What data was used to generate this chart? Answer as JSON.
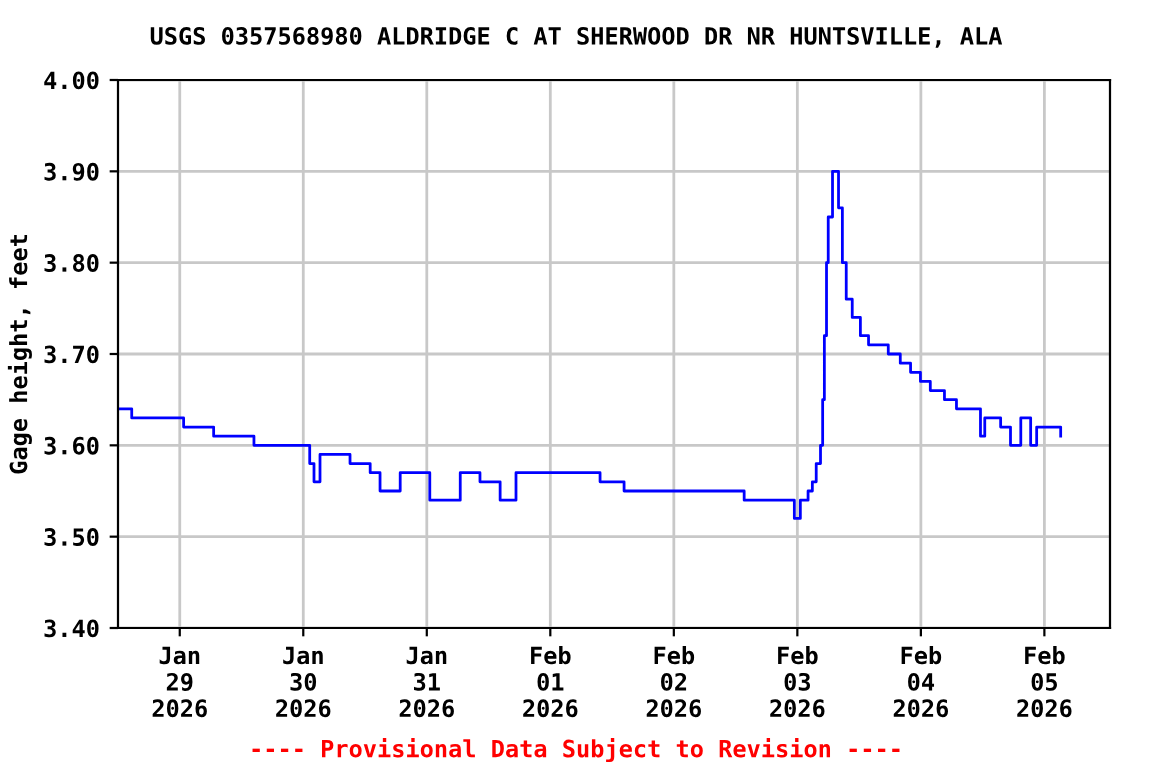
{
  "chart_data": {
    "type": "step",
    "title": "USGS 0357568980 ALDRIDGE C AT SHERWOOD DR NR HUNTSVILLE, ALA",
    "ylabel": "Gage height, feet",
    "annotations": [
      "---- Provisional Data Subject to Revision ----"
    ],
    "x": [
      "2026-01-28T12:20",
      "2026-01-28T14:40",
      "2026-01-29T00:00",
      "2026-01-29T00:45",
      "2026-01-29T06:15",
      "2026-01-29T06:35",
      "2026-01-29T14:00",
      "2026-01-29T14:25",
      "2026-01-30T00:30",
      "2026-01-30T01:15",
      "2026-01-30T02:05",
      "2026-01-30T03:15",
      "2026-01-30T09:05",
      "2026-01-30T13:00",
      "2026-01-30T14:55",
      "2026-01-30T18:50",
      "2026-01-31T00:35",
      "2026-01-31T06:30",
      "2026-01-31T10:20",
      "2026-01-31T14:15",
      "2026-01-31T17:20",
      "2026-02-01T09:40",
      "2026-02-01T13:35",
      "2026-02-01T14:20",
      "2026-02-02T12:55",
      "2026-02-02T13:40",
      "2026-02-02T22:35",
      "2026-02-02T23:25",
      "2026-02-03T00:35",
      "2026-02-03T02:05",
      "2026-02-03T02:55",
      "2026-02-03T03:40",
      "2026-02-03T04:30",
      "2026-02-03T04:55",
      "2026-02-03T05:15",
      "2026-02-03T05:40",
      "2026-02-03T06:00",
      "2026-02-03T06:50",
      "2026-02-03T07:35",
      "2026-02-03T08:00",
      "2026-02-03T08:45",
      "2026-02-03T09:30",
      "2026-02-03T10:40",
      "2026-02-03T12:15",
      "2026-02-03T13:50",
      "2026-02-03T16:10",
      "2026-02-03T17:40",
      "2026-02-03T20:00",
      "2026-02-03T22:00",
      "2026-02-03T23:55",
      "2026-02-04T01:50",
      "2026-02-04T04:35",
      "2026-02-04T06:55",
      "2026-02-04T11:35",
      "2026-02-04T12:25",
      "2026-02-04T15:30",
      "2026-02-04T17:25",
      "2026-02-04T19:25",
      "2026-02-04T21:20",
      "2026-02-04T22:30",
      "2026-02-05T02:00",
      "2026-02-05T03:10"
    ],
    "series": [
      {
        "color": "#0000ff",
        "values": [
          3.64,
          3.63,
          3.63,
          3.62,
          3.62,
          3.61,
          3.61,
          3.6,
          3.6,
          3.58,
          3.56,
          3.59,
          3.58,
          3.57,
          3.55,
          3.57,
          3.54,
          3.57,
          3.56,
          3.54,
          3.57,
          3.56,
          3.56,
          3.55,
          3.55,
          3.54,
          3.54,
          3.52,
          3.54,
          3.55,
          3.56,
          3.58,
          3.6,
          3.65,
          3.72,
          3.8,
          3.85,
          3.9,
          3.9,
          3.86,
          3.8,
          3.76,
          3.74,
          3.72,
          3.71,
          3.71,
          3.7,
          3.69,
          3.68,
          3.67,
          3.66,
          3.65,
          3.64,
          3.61,
          3.63,
          3.62,
          3.6,
          3.63,
          3.6,
          3.62,
          3.62,
          3.61
        ]
      }
    ],
    "xlim": [
      "2026-01-28T12:00",
      "2026-02-05T12:45"
    ],
    "xticks": [
      {
        "value": "2026-01-29",
        "label": "Jan\n29\n2026"
      },
      {
        "value": "2026-01-30",
        "label": "Jan\n30\n2026"
      },
      {
        "value": "2026-01-31",
        "label": "Jan\n31\n2026"
      },
      {
        "value": "2026-02-01",
        "label": "Feb\n01\n2026"
      },
      {
        "value": "2026-02-02",
        "label": "Feb\n02\n2026"
      },
      {
        "value": "2026-02-03",
        "label": "Feb\n03\n2026"
      },
      {
        "value": "2026-02-04",
        "label": "Feb\n04\n2026"
      },
      {
        "value": "2026-02-05",
        "label": "Feb\n05\n2026"
      }
    ],
    "ylim": [
      3.4,
      4.0
    ],
    "yticks": [
      {
        "value": 3.4,
        "label": "3.40"
      },
      {
        "value": 3.5,
        "label": "3.50"
      },
      {
        "value": 3.6,
        "label": "3.60"
      },
      {
        "value": 3.7,
        "label": "3.70"
      },
      {
        "value": 3.8,
        "label": "3.80"
      },
      {
        "value": 3.9,
        "label": "3.90"
      },
      {
        "value": 4.0,
        "label": "4.00"
      }
    ],
    "grid": true,
    "line_style": "solid"
  }
}
